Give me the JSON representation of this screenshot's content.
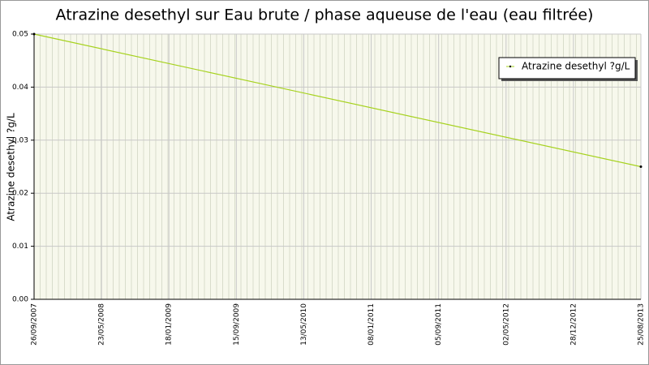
{
  "chart_data": {
    "type": "line",
    "title": "Atrazine desethyl sur Eau brute / phase aqueuse de l'eau (eau filtrée)",
    "y_label": "Atrazine desethyl ?g/L",
    "x": [
      "26/09/2007",
      "25/08/2013"
    ],
    "series": [
      {
        "name": "Atrazine desethyl ?g/L",
        "color": "#a6d21e",
        "values": [
          0.05,
          0.025
        ]
      }
    ],
    "xlim": [
      "26/09/2007",
      "25/08/2013"
    ],
    "xticks": [
      "26/09/2007",
      "23/05/2008",
      "18/01/2009",
      "15/09/2009",
      "13/05/2010",
      "08/01/2011",
      "05/09/2011",
      "02/05/2012",
      "28/12/2012",
      "25/08/2013"
    ],
    "ylim": [
      0,
      0.05
    ],
    "yticks": [
      {
        "value": 0,
        "label": "0.00"
      },
      0.01,
      0.02,
      0.03,
      0.04,
      0.05
    ],
    "grid": true,
    "legend": "top-right"
  }
}
